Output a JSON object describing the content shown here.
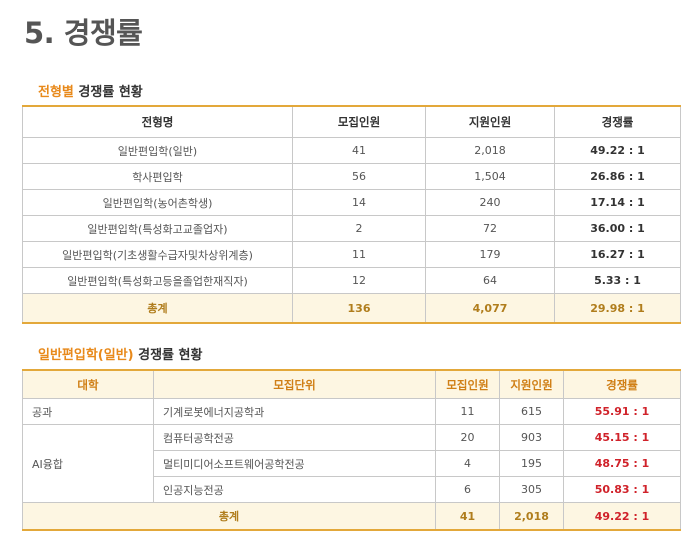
{
  "page": {
    "title": "5. 경쟁률"
  },
  "section1": {
    "heading_accent": "전형별",
    "heading_rest": " 경쟁률 현황",
    "headers": [
      "전형명",
      "모집인원",
      "지원인원",
      "경쟁률"
    ],
    "rows": [
      [
        "일반편입학(일반)",
        "41",
        "2,018",
        "49.22 : 1"
      ],
      [
        "학사편입학",
        "56",
        "1,504",
        "26.86 : 1"
      ],
      [
        "일반편입학(농어촌학생)",
        "14",
        "240",
        "17.14 : 1"
      ],
      [
        "일반편입학(특성화고교졸업자)",
        "2",
        "72",
        "36.00 : 1"
      ],
      [
        "일반편입학(기초생활수급자및차상위계층)",
        "11",
        "179",
        "16.27 : 1"
      ],
      [
        "일반편입학(특성화고등을졸업한재직자)",
        "12",
        "64",
        "5.33 : 1"
      ]
    ],
    "total": [
      "총계",
      "136",
      "4,077",
      "29.98 : 1"
    ]
  },
  "section2": {
    "heading_accent": "일반편입학(일반)",
    "heading_rest": " 경쟁률 현황",
    "headers": [
      "대학",
      "모집단위",
      "모집인원",
      "지원인원",
      "경쟁률"
    ],
    "rows": [
      {
        "college": "공과",
        "unit": "기계로봇에너지공학과",
        "quota": "11",
        "applicants": "615",
        "rate": "55.91 : 1"
      },
      {
        "college": "AI융합",
        "unit": "컴퓨터공학전공",
        "quota": "20",
        "applicants": "903",
        "rate": "45.15 : 1"
      },
      {
        "college": "",
        "unit": "멀티미디어소프트웨어공학전공",
        "quota": "4",
        "applicants": "195",
        "rate": "48.75 : 1"
      },
      {
        "college": "",
        "unit": "인공지능전공",
        "quota": "6",
        "applicants": "305",
        "rate": "50.83 : 1"
      }
    ],
    "total": [
      "총계",
      "41",
      "2,018",
      "49.22 : 1"
    ]
  }
}
